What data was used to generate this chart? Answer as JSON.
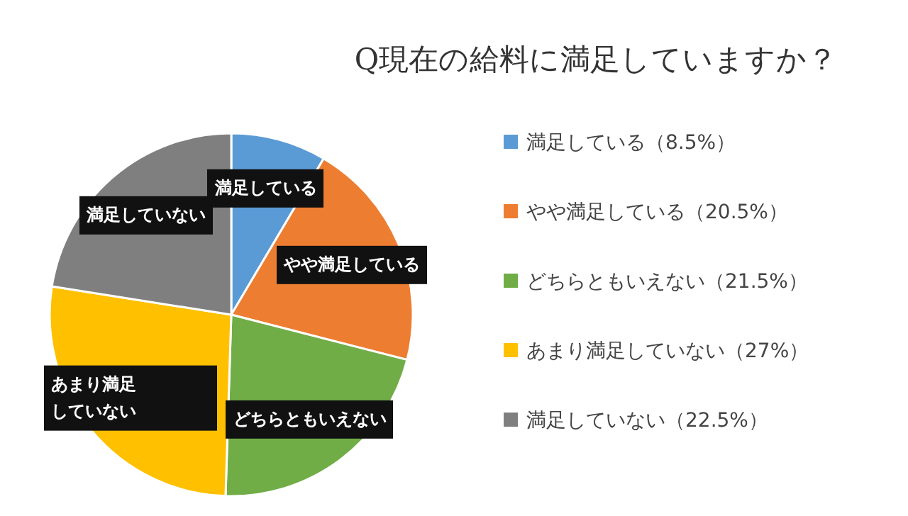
{
  "chart_data": {
    "type": "pie",
    "title": "Q現在の給料に満足していますか？",
    "categories": [
      "満足している",
      "やや満足している",
      "どちらともいえない",
      "あまり満足していない",
      "満足していない"
    ],
    "values": [
      8.5,
      20.5,
      21.5,
      27,
      22.5
    ],
    "colors": [
      "#5b9bd5",
      "#ed7d31",
      "#70ad47",
      "#ffc000",
      "#7f7f7f"
    ],
    "value_labels": [
      "（8.5%）",
      "（20.5%）",
      "（21.5%）",
      "（27%）",
      "（22.5%）"
    ],
    "legend": "right"
  }
}
